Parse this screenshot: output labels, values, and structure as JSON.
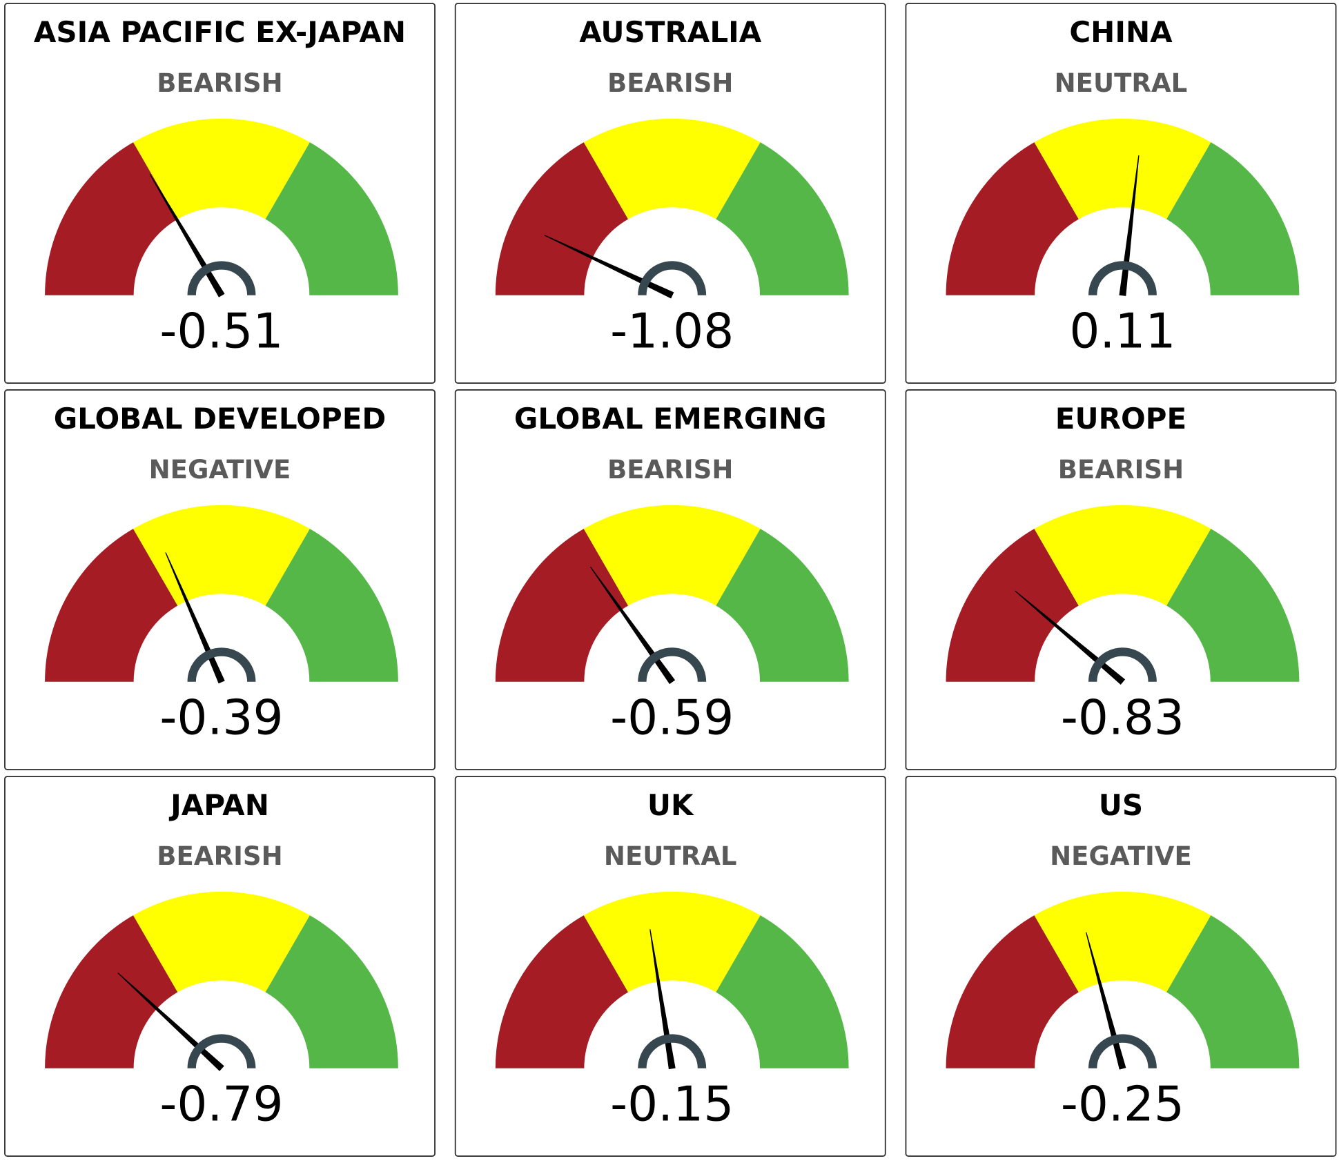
{
  "chart_data": [
    {
      "type": "gauge",
      "title": "ASIA PACIFIC EX-JAPAN",
      "status": "BEARISH",
      "value": -0.51,
      "range": [
        -1.5,
        1.5
      ],
      "bands": [
        {
          "from": -1.5,
          "to": -0.5,
          "color": "#a51c24"
        },
        {
          "from": -0.5,
          "to": 0.5,
          "color": "#ffff00"
        },
        {
          "from": 0.5,
          "to": 1.5,
          "color": "#55b748"
        }
      ]
    },
    {
      "type": "gauge",
      "title": "AUSTRALIA",
      "status": "BEARISH",
      "value": -1.08,
      "range": [
        -1.5,
        1.5
      ],
      "bands": [
        {
          "from": -1.5,
          "to": -0.5,
          "color": "#a51c24"
        },
        {
          "from": -0.5,
          "to": 0.5,
          "color": "#ffff00"
        },
        {
          "from": 0.5,
          "to": 1.5,
          "color": "#55b748"
        }
      ]
    },
    {
      "type": "gauge",
      "title": "CHINA",
      "status": "NEUTRAL",
      "value": 0.11,
      "range": [
        -1.5,
        1.5
      ],
      "bands": [
        {
          "from": -1.5,
          "to": -0.5,
          "color": "#a51c24"
        },
        {
          "from": -0.5,
          "to": 0.5,
          "color": "#ffff00"
        },
        {
          "from": 0.5,
          "to": 1.5,
          "color": "#55b748"
        }
      ]
    },
    {
      "type": "gauge",
      "title": "GLOBAL DEVELOPED",
      "status": "NEGATIVE",
      "value": -0.39,
      "range": [
        -1.5,
        1.5
      ],
      "bands": [
        {
          "from": -1.5,
          "to": -0.5,
          "color": "#a51c24"
        },
        {
          "from": -0.5,
          "to": 0.5,
          "color": "#ffff00"
        },
        {
          "from": 0.5,
          "to": 1.5,
          "color": "#55b748"
        }
      ]
    },
    {
      "type": "gauge",
      "title": "GLOBAL EMERGING",
      "status": "BEARISH",
      "value": -0.59,
      "range": [
        -1.5,
        1.5
      ],
      "bands": [
        {
          "from": -1.5,
          "to": -0.5,
          "color": "#a51c24"
        },
        {
          "from": -0.5,
          "to": 0.5,
          "color": "#ffff00"
        },
        {
          "from": 0.5,
          "to": 1.5,
          "color": "#55b748"
        }
      ]
    },
    {
      "type": "gauge",
      "title": "EUROPE",
      "status": "BEARISH",
      "value": -0.83,
      "range": [
        -1.5,
        1.5
      ],
      "bands": [
        {
          "from": -1.5,
          "to": -0.5,
          "color": "#a51c24"
        },
        {
          "from": -0.5,
          "to": 0.5,
          "color": "#ffff00"
        },
        {
          "from": 0.5,
          "to": 1.5,
          "color": "#55b748"
        }
      ]
    },
    {
      "type": "gauge",
      "title": "JAPAN",
      "status": "BEARISH",
      "value": -0.79,
      "range": [
        -1.5,
        1.5
      ],
      "bands": [
        {
          "from": -1.5,
          "to": -0.5,
          "color": "#a51c24"
        },
        {
          "from": -0.5,
          "to": 0.5,
          "color": "#ffff00"
        },
        {
          "from": 0.5,
          "to": 1.5,
          "color": "#55b748"
        }
      ]
    },
    {
      "type": "gauge",
      "title": "UK",
      "status": "NEUTRAL",
      "value": -0.15,
      "range": [
        -1.5,
        1.5
      ],
      "bands": [
        {
          "from": -1.5,
          "to": -0.5,
          "color": "#a51c24"
        },
        {
          "from": -0.5,
          "to": 0.5,
          "color": "#ffff00"
        },
        {
          "from": 0.5,
          "to": 1.5,
          "color": "#55b748"
        }
      ]
    },
    {
      "type": "gauge",
      "title": "US",
      "status": "NEGATIVE",
      "value": -0.25,
      "range": [
        -1.5,
        1.5
      ],
      "bands": [
        {
          "from": -1.5,
          "to": -0.5,
          "color": "#a51c24"
        },
        {
          "from": -0.5,
          "to": 0.5,
          "color": "#ffff00"
        },
        {
          "from": 0.5,
          "to": 1.5,
          "color": "#55b748"
        }
      ]
    }
  ]
}
